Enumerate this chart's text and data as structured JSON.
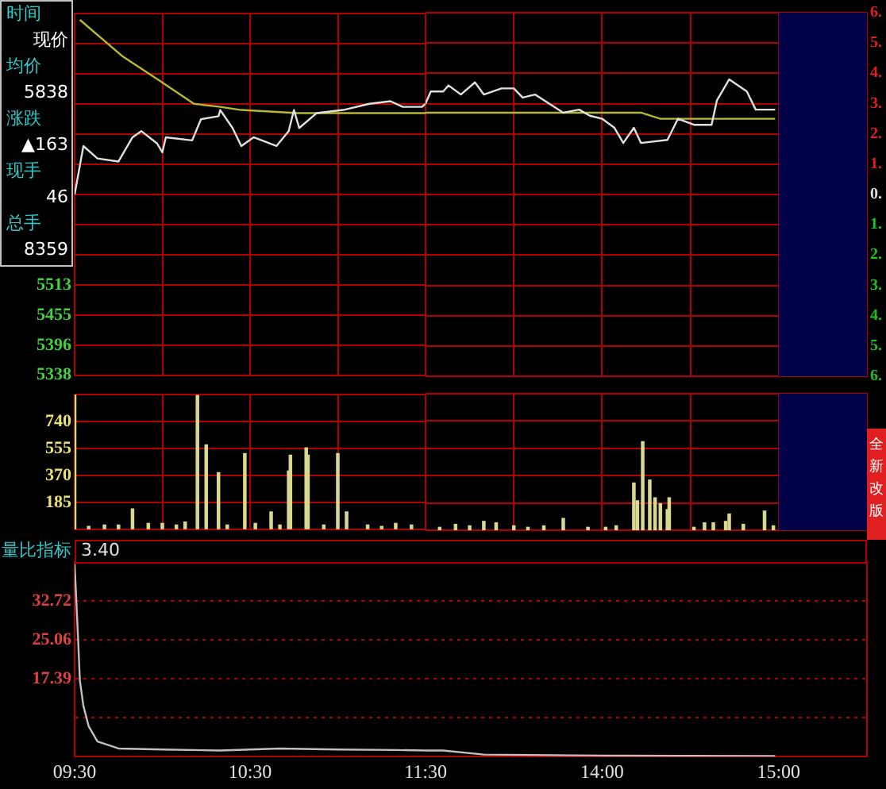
{
  "chart_data": [
    {
      "type": "line",
      "xlim": [
        9.5,
        11.5
      ],
      "xticks": [
        {
          "value": 9.5,
          "label": null
        },
        {
          "value": 10,
          "label": null
        },
        {
          "value": 10.5,
          "label": null
        },
        {
          "value": 11,
          "label": null
        },
        {
          "value": 11.5,
          "label": null
        }
      ],
      "series": [
        {
          "color": "#e0e0e0",
          "x": [
            9.5,
            9.55,
            9.63,
            9.75,
            9.83,
            9.88,
            9.97,
            10,
            10.02,
            10.17,
            10.22,
            10.32,
            10.33,
            10.4,
            10.45,
            10.52,
            10.65,
            10.72,
            10.75,
            10.78,
            10.88,
            11.03,
            11.18,
            11.3,
            11.37,
            11.48,
            11.5
          ],
          "values": [
            5689,
            5783,
            5759,
            5753,
            5800,
            5812,
            5788,
            5771,
            5800,
            5794,
            5835,
            5841,
            5853,
            5818,
            5783,
            5800,
            5783,
            5812,
            5853,
            5818,
            5847,
            5853,
            5865,
            5870,
            5859,
            5859,
            5865
          ]
        },
        {
          "color": "#b8b830",
          "x": [
            9.53,
            9.77,
            9.98,
            10.18,
            10.33,
            10.45,
            10.77,
            11.5
          ],
          "values": [
            6028,
            5958,
            5911,
            5865,
            5859,
            5853,
            5847,
            5847
          ]
        }
      ],
      "ylim": [
        5338,
        6040
      ],
      "yticks": [
        5338,
        5396,
        5455,
        5513,
        {
          "value": 5572,
          "label": null
        },
        {
          "value": 5630,
          "label": null
        },
        {
          "value": 5689,
          "label": null
        },
        {
          "value": 5747,
          "label": null
        },
        {
          "value": 5806,
          "label": null
        },
        {
          "value": 5864,
          "label": null
        },
        {
          "value": 5923,
          "label": null
        },
        {
          "value": 5981,
          "label": null
        },
        {
          "value": 6040,
          "label": null
        }
      ],
      "grid": true,
      "tick_labels": "y",
      "annotations": [
        "时间",
        "现价",
        "均价",
        "5838",
        "涨跌",
        "▲163",
        "现手",
        "46",
        "总手",
        "8359"
      ]
    },
    {
      "type": "line",
      "xlim": [
        13,
        15.5
      ],
      "xticks": [
        {
          "value": 13.5,
          "label": null
        },
        {
          "value": 14,
          "label": null
        },
        {
          "value": 14.5,
          "label": null
        },
        {
          "value": 15,
          "label": null
        }
      ],
      "series": [
        {
          "color": "#e0e0e0",
          "x": [
            13,
            13.03,
            13.1,
            13.13,
            13.2,
            13.28,
            13.33,
            13.43,
            13.5,
            13.55,
            13.62,
            13.7,
            13.78,
            13.87,
            13.93,
            14,
            14.07,
            14.12,
            14.18,
            14.22,
            14.37,
            14.43,
            14.52,
            14.62,
            14.65,
            14.72,
            14.82,
            14.87,
            14.98
          ],
          "values": [
            3.0,
            3.4,
            3.4,
            3.6,
            3.3,
            3.7,
            3.3,
            3.5,
            3.5,
            3.2,
            3.3,
            3.0,
            2.7,
            2.8,
            2.6,
            2.5,
            2.2,
            1.7,
            2.2,
            1.7,
            1.8,
            2.5,
            2.3,
            2.3,
            3.1,
            3.8,
            3.4,
            2.8,
            2.8
          ]
        },
        {
          "color": "#b8b830",
          "x": [
            13,
            14.22,
            14.33,
            14.98
          ],
          "values": [
            2.7,
            2.7,
            2.5,
            2.5
          ]
        }
      ],
      "ylim": [
        -6,
        6
      ],
      "yticks": [
        {
          "value": 6,
          "label": "6."
        },
        {
          "value": 5,
          "label": "5."
        },
        {
          "value": 4,
          "label": "4."
        },
        {
          "value": 3,
          "label": "3."
        },
        {
          "value": 2,
          "label": "2."
        },
        {
          "value": 1,
          "label": "1."
        },
        {
          "value": 0,
          "label": "0."
        },
        {
          "value": -1,
          "label": "1."
        },
        {
          "value": -2,
          "label": "2."
        },
        {
          "value": -3,
          "label": "3."
        },
        {
          "value": -4,
          "label": "4."
        },
        {
          "value": -5,
          "label": "5."
        },
        {
          "value": -6,
          "label": "6."
        }
      ],
      "grid": true,
      "tick_labels": "y",
      "bands": [
        {
          "axis": "x",
          "from": 15,
          "to": 15.5,
          "color": "#000048"
        }
      ]
    },
    {
      "type": "bar",
      "xlim": [
        9.5,
        11.5
      ],
      "xticks": [
        {
          "value": 9.5,
          "label": null
        },
        {
          "value": 10,
          "label": null
        },
        {
          "value": 10.5,
          "label": null
        },
        {
          "value": 11,
          "label": null
        },
        {
          "value": 11.5,
          "label": null
        }
      ],
      "x": [
        9.5,
        9.58,
        9.67,
        9.75,
        9.83,
        9.92,
        10,
        10.08,
        10.13,
        10.2,
        10.25,
        10.32,
        10.37,
        10.47,
        10.53,
        10.62,
        10.67,
        10.72,
        10.73,
        10.82,
        10.83,
        10.92,
        11,
        11.05,
        11.17,
        11.25,
        11.33,
        11.42
      ],
      "values": [
        925,
        20,
        30,
        30,
        140,
        40,
        40,
        30,
        50,
        920,
        580,
        390,
        30,
        520,
        40,
        120,
        30,
        400,
        510,
        560,
        510,
        30,
        520,
        120,
        30,
        20,
        40,
        30
      ],
      "color": "#d8d890",
      "ylim": [
        0,
        925
      ],
      "yticks": [
        185,
        370,
        555,
        740,
        {
          "value": 925,
          "label": null
        }
      ],
      "grid": true,
      "tick_labels": "y"
    },
    {
      "type": "bar",
      "xlim": [
        13,
        15.5
      ],
      "xticks": [
        {
          "value": 13.5,
          "label": null
        },
        {
          "value": 14,
          "label": null
        },
        {
          "value": 14.5,
          "label": null
        },
        {
          "value": 15,
          "label": null
        }
      ],
      "x": [
        13.08,
        13.17,
        13.25,
        13.33,
        13.4,
        13.5,
        13.58,
        13.67,
        13.78,
        13.92,
        14.02,
        14.08,
        14.18,
        14.2,
        14.23,
        14.27,
        14.3,
        14.33,
        14.37,
        14.38,
        14.52,
        14.58,
        14.63,
        14.7,
        14.72,
        14.8,
        14.92,
        14.97
      ],
      "values": [
        20,
        40,
        30,
        60,
        50,
        30,
        20,
        30,
        80,
        20,
        20,
        30,
        320,
        200,
        600,
        340,
        220,
        180,
        140,
        220,
        20,
        50,
        50,
        60,
        110,
        40,
        130,
        30
      ],
      "color": "#d8d890",
      "ylim": [
        0,
        925
      ],
      "yticks": [
        {
          "value": 185,
          "label": null
        },
        {
          "value": 370,
          "label": null
        },
        {
          "value": 555,
          "label": null
        },
        {
          "value": 740,
          "label": null
        },
        {
          "value": 925,
          "label": null
        }
      ],
      "grid": true,
      "tick_labels": false,
      "bands": [
        {
          "axis": "x",
          "from": 15,
          "to": 15.5,
          "color": "#000048"
        }
      ],
      "annotations": [
        "全新改版"
      ]
    },
    {
      "type": "line",
      "title": "量比指标",
      "xlim": [
        9.5,
        11.5
      ],
      "xticks": [
        {
          "value": 9.5,
          "label": "09:30"
        },
        {
          "value": 10.5,
          "label": "10:30"
        },
        {
          "value": 11.5,
          "label": "11:30"
        }
      ],
      "x": [
        9.5,
        9.52,
        9.53,
        9.55,
        9.58,
        9.63,
        9.75,
        10,
        10.33,
        10.67,
        11,
        11.33,
        11.5
      ],
      "values": [
        40,
        25,
        17,
        12,
        8,
        5,
        3.6,
        3.4,
        3.2,
        3.6,
        3.4,
        3.3,
        3.2
      ],
      "color": "#c0c0c0",
      "ylim": [
        2,
        40.4
      ],
      "yticks": [
        {
          "value": 9.73,
          "label": null
        },
        17.39,
        25.06,
        32.72
      ],
      "grid": "y",
      "annotations": [
        "3.40"
      ]
    },
    {
      "type": "line",
      "xlim": [
        13,
        15.5
      ],
      "xticks": [
        {
          "value": 14,
          "label": "14:00"
        },
        {
          "value": 15,
          "label": "15:00"
        }
      ],
      "x": [
        13,
        13.1,
        13.33,
        14,
        14.98
      ],
      "values": [
        3.2,
        3.2,
        2.4,
        2.2,
        2.1
      ],
      "color": "#c0c0c0",
      "ylim": [
        2,
        40.4
      ],
      "yticks": [
        {
          "value": 9.73,
          "label": null
        },
        {
          "value": 17.39,
          "label": null
        },
        {
          "value": 25.06,
          "label": null
        },
        {
          "value": 32.72,
          "label": null
        }
      ],
      "grid": "y",
      "tick_labels": "x"
    }
  ]
}
